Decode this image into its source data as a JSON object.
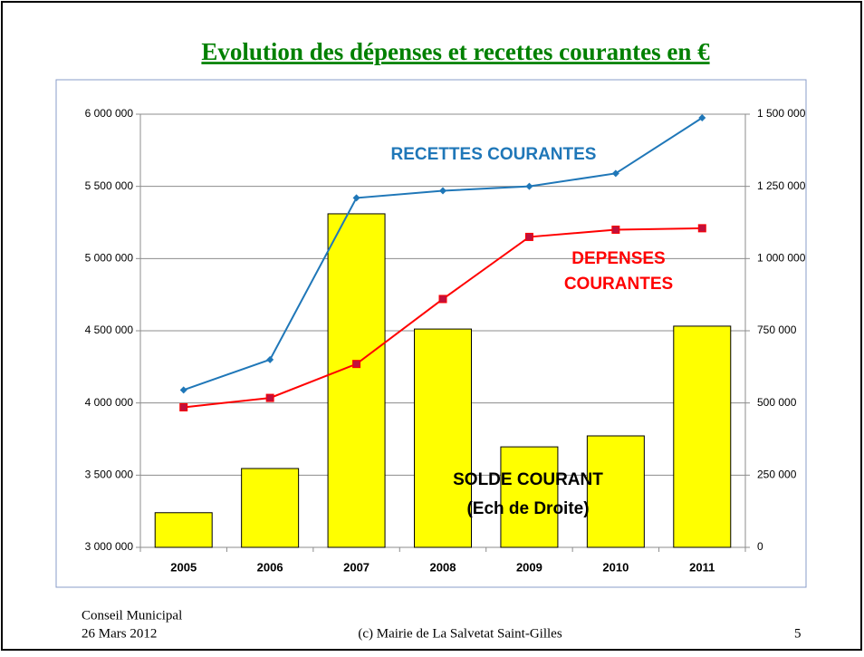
{
  "chart_data": {
    "type": "bar",
    "title": "Evolution des dépenses et recettes courantes en €",
    "categories": [
      "2005",
      "2006",
      "2007",
      "2008",
      "2009",
      "2010",
      "2011"
    ],
    "series": [
      {
        "name": "SOLDE COURANT",
        "type": "bar",
        "axis": "y2",
        "color": "#ffff00",
        "values": [
          120000,
          273000,
          1155000,
          756000,
          348000,
          386000,
          766000
        ]
      },
      {
        "name": "RECETTES COURANTES",
        "type": "line",
        "color": "#1f77b8",
        "marker": "diamond",
        "values": [
          4090000,
          4300000,
          5420000,
          5470000,
          5500000,
          5590000,
          5975000
        ]
      },
      {
        "name": "DEPENSES COURANTES",
        "type": "line",
        "color": "#ff0000",
        "marker": "square",
        "marker_color": "#c0103c",
        "values": [
          3970000,
          4035000,
          4270000,
          4720000,
          5150000,
          5200000,
          5210000
        ]
      }
    ],
    "annotations": [
      "(Ech de Droite)"
    ],
    "ylim": [
      3000000,
      6000000
    ],
    "yticks": [
      {
        "value": 3000000,
        "label": "3 000 000"
      },
      {
        "value": 3500000,
        "label": "3 500 000"
      },
      {
        "value": 4000000,
        "label": "4 000 000"
      },
      {
        "value": 4500000,
        "label": "4 500 000"
      },
      {
        "value": 5000000,
        "label": "5 000 000"
      },
      {
        "value": 5500000,
        "label": "5 500 000"
      },
      {
        "value": 6000000,
        "label": "6 000 000"
      }
    ],
    "y2lim": [
      0,
      1500000
    ],
    "y2ticks": [
      0,
      {
        "value": 250000,
        "label": "250 000"
      },
      {
        "value": 500000,
        "label": "500 000"
      },
      {
        "value": 750000,
        "label": "750 000"
      },
      {
        "value": 1000000,
        "label": "1 000 000"
      },
      {
        "value": 1250000,
        "label": "1 250 000"
      },
      {
        "value": 1500000,
        "label": "1 500 000"
      }
    ],
    "grid": true
  },
  "footer": {
    "left": [
      "Conseil Municipal",
      "26 Mars 2012"
    ],
    "center": "(c) Mairie de La Salvetat Saint-Gilles",
    "page": "5"
  }
}
